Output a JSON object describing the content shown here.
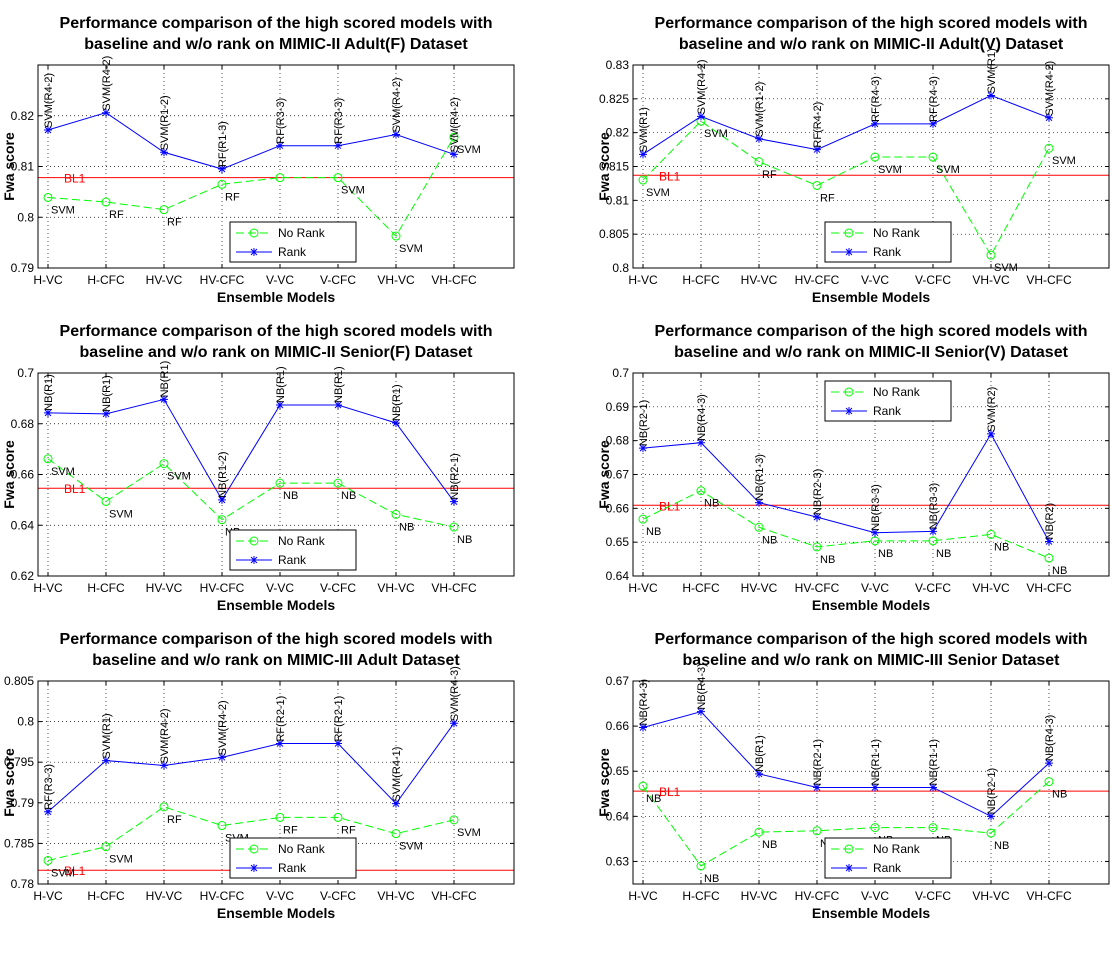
{
  "chart_data": [
    {
      "type": "line",
      "title": [
        "Performance comparison of the high scored models with",
        "baseline and w/o rank on MIMIC-II Adult(F) Dataset"
      ],
      "xlabel": "Ensemble Models",
      "ylabel": "Fwa score",
      "categories": [
        "H-VC",
        "H-CFC",
        "HV-VC",
        "HV-CFC",
        "V-VC",
        "V-CFC",
        "VH-VC",
        "VH-CFC"
      ],
      "ylim": [
        0.79,
        0.83
      ],
      "yticks": [
        0.79,
        0.8,
        0.81,
        0.82
      ],
      "ytick_labels": [
        "0.79",
        "0.8",
        "0.81",
        "0.82"
      ],
      "grid": true,
      "legend": "bottom-center",
      "baseline": {
        "label": "BL1",
        "value": 0.8078,
        "color": "#ff0000"
      },
      "series": [
        {
          "name": "No Rank",
          "color": "#00ff00",
          "marker": "circle",
          "dash": true,
          "values": [
            0.8039,
            0.803,
            0.8015,
            0.8065,
            0.8078,
            0.8078,
            0.7963,
            0.8158
          ],
          "labels": [
            "SVM",
            "RF",
            "RF",
            "RF",
            "",
            "SVM",
            "SVM",
            "SVM"
          ]
        },
        {
          "name": "Rank",
          "color": "#0000ff",
          "marker": "star",
          "dash": false,
          "values": [
            0.8172,
            0.8206,
            0.8128,
            0.8095,
            0.8141,
            0.8141,
            0.8163,
            0.8124
          ],
          "labels": [
            "SVM(R4-2)",
            "SVM(R4-2)",
            "SVM(R1-2)",
            "RF(R1-3)",
            "RF(R3-3)",
            "RF(R3-3)",
            "SVM(R4-2)",
            "SVM(R4-2)"
          ]
        }
      ]
    },
    {
      "type": "line",
      "title": [
        "Performance comparison of the high scored models with",
        "baseline and w/o rank on MIMIC-II Adult(V) Dataset"
      ],
      "xlabel": "Ensemble Models",
      "ylabel": "Fwa score",
      "categories": [
        "H-VC",
        "H-CFC",
        "HV-VC",
        "HV-CFC",
        "V-VC",
        "V-CFC",
        "VH-VC",
        "VH-CFC"
      ],
      "ylim": [
        0.8,
        0.83
      ],
      "yticks": [
        0.8,
        0.805,
        0.81,
        0.815,
        0.82,
        0.825,
        0.83
      ],
      "ytick_labels": [
        "0.8",
        "0.805",
        "0.81",
        "0.815",
        "0.82",
        "0.825",
        "0.83"
      ],
      "grid": true,
      "legend": "bottom-center",
      "baseline": {
        "label": "BL1",
        "value": 0.8137,
        "color": "#ff0000"
      },
      "series": [
        {
          "name": "No Rank",
          "color": "#00ff00",
          "marker": "circle",
          "dash": true,
          "values": [
            0.813,
            0.8217,
            0.8157,
            0.8122,
            0.8164,
            0.8164,
            0.8019,
            0.8177
          ],
          "labels": [
            "SVM",
            "SVM",
            "RF",
            "RF",
            "SVM",
            "SVM",
            "SVM",
            "SVM"
          ]
        },
        {
          "name": "Rank",
          "color": "#0000ff",
          "marker": "star",
          "dash": false,
          "values": [
            0.8168,
            0.8224,
            0.8191,
            0.8175,
            0.8213,
            0.8213,
            0.8255,
            0.8222
          ],
          "labels": [
            "SVM(R1)",
            "SVM(R4-2)",
            "SVM(R1-2)",
            "RF(R4-2)",
            "RF(R4-3)",
            "RF(R4-3)",
            "SVM(R1)",
            "SVM(R4-2)"
          ]
        }
      ]
    },
    {
      "type": "line",
      "title": [
        "Performance comparison of the high scored models with",
        "baseline and w/o rank on MIMIC-II Senior(F) Dataset"
      ],
      "xlabel": "Ensemble Models",
      "ylabel": "Fwa score",
      "categories": [
        "H-VC",
        "H-CFC",
        "HV-VC",
        "HV-CFC",
        "V-VC",
        "V-CFC",
        "VH-VC",
        "VH-CFC"
      ],
      "ylim": [
        0.62,
        0.7
      ],
      "yticks": [
        0.62,
        0.64,
        0.66,
        0.68,
        0.7
      ],
      "ytick_labels": [
        "0.62",
        "0.64",
        "0.66",
        "0.68",
        "0.7"
      ],
      "grid": true,
      "legend": "bottom-center",
      "baseline": {
        "label": "BL1",
        "value": 0.6546,
        "color": "#ff0000"
      },
      "series": [
        {
          "name": "No Rank",
          "color": "#00ff00",
          "marker": "circle",
          "dash": true,
          "values": [
            0.6662,
            0.6494,
            0.6643,
            0.6422,
            0.6566,
            0.6566,
            0.6443,
            0.6393
          ],
          "labels": [
            "SVM",
            "SVM",
            "SVM",
            "NB",
            "NB",
            "NB",
            "NB",
            "NB"
          ]
        },
        {
          "name": "Rank",
          "color": "#0000ff",
          "marker": "star",
          "dash": false,
          "values": [
            0.6843,
            0.6839,
            0.6896,
            0.65,
            0.6874,
            0.6874,
            0.6803,
            0.6493
          ],
          "labels": [
            "NB(R1)",
            "NB(R1)",
            "NB(R1)",
            "NB(R1-2)",
            "NB(R1)",
            "NB(R1)",
            "NB(R1)",
            "NB(R2-1)"
          ]
        }
      ]
    },
    {
      "type": "line",
      "title": [
        "Performance comparison of the high scored models with",
        "baseline and w/o rank on MIMIC-II Senior(V) Dataset"
      ],
      "xlabel": "Ensemble Models",
      "ylabel": "Fwa score",
      "categories": [
        "H-VC",
        "H-CFC",
        "HV-VC",
        "HV-CFC",
        "V-VC",
        "V-CFC",
        "VH-VC",
        "VH-CFC"
      ],
      "ylim": [
        0.64,
        0.7
      ],
      "yticks": [
        0.64,
        0.65,
        0.66,
        0.67,
        0.68,
        0.69,
        0.7
      ],
      "ytick_labels": [
        "0.64",
        "0.65",
        "0.66",
        "0.67",
        "0.68",
        "0.69",
        "0.7"
      ],
      "grid": true,
      "legend": "top-center",
      "baseline": {
        "label": "BL1",
        "value": 0.6609,
        "color": "#ff0000"
      },
      "series": [
        {
          "name": "No Rank",
          "color": "#00ff00",
          "marker": "circle",
          "dash": true,
          "values": [
            0.6568,
            0.6652,
            0.6544,
            0.6486,
            0.6504,
            0.6504,
            0.6523,
            0.6453
          ],
          "labels": [
            "NB",
            "NB",
            "NB",
            "NB",
            "NB",
            "NB",
            "NB",
            "NB"
          ]
        },
        {
          "name": "Rank",
          "color": "#0000ff",
          "marker": "star",
          "dash": false,
          "values": [
            0.6778,
            0.6794,
            0.6617,
            0.6574,
            0.6528,
            0.6532,
            0.682,
            0.6502
          ],
          "labels": [
            "NB(R2-1)",
            "NB(R4-3)",
            "NB(R1-3)",
            "NB(R2-3)",
            "NB(R3-3)",
            "NB(R3-3)",
            "SVM(R2)",
            "NB(R2)"
          ]
        }
      ]
    },
    {
      "type": "line",
      "title": [
        "Performance comparison of the high scored models with",
        "baseline and w/o rank on MIMIC-III Adult Dataset"
      ],
      "xlabel": "Ensemble Models",
      "ylabel": "Fwa score",
      "categories": [
        "H-VC",
        "H-CFC",
        "HV-VC",
        "HV-CFC",
        "V-VC",
        "V-CFC",
        "VH-VC",
        "VH-CFC"
      ],
      "ylim": [
        0.78,
        0.805
      ],
      "yticks": [
        0.78,
        0.785,
        0.79,
        0.795,
        0.8,
        0.805
      ],
      "ytick_labels": [
        "0.78",
        "0.785",
        "0.79",
        "0.795",
        "0.8",
        "0.805"
      ],
      "grid": true,
      "legend": "bottom-center",
      "baseline": {
        "label": "BL1",
        "value": 0.7817,
        "color": "#ff0000"
      },
      "series": [
        {
          "name": "No Rank",
          "color": "#00ff00",
          "marker": "circle",
          "dash": true,
          "values": [
            0.7829,
            0.7846,
            0.7895,
            0.7872,
            0.7882,
            0.7882,
            0.7862,
            0.7879
          ],
          "labels": [
            "SVM",
            "SVM",
            "RF",
            "SVM",
            "RF",
            "RF",
            "SVM",
            "SVM"
          ]
        },
        {
          "name": "Rank",
          "color": "#0000ff",
          "marker": "star",
          "dash": false,
          "values": [
            0.7889,
            0.7952,
            0.7946,
            0.7956,
            0.7973,
            0.7973,
            0.7899,
            0.7998
          ],
          "labels": [
            "RF(R3-3)",
            "SVM(R1)",
            "SVM(R4-2)",
            "SVM(R4-2)",
            "RF(R2-1)",
            "RF(R2-1)",
            "SVM(R4-1)",
            "SVM(R4-3)"
          ]
        }
      ]
    },
    {
      "type": "line",
      "title": [
        "Performance comparison of the high scored models with",
        "baseline and w/o rank on MIMIC-III Senior Dataset"
      ],
      "xlabel": "Ensemble Models",
      "ylabel": "Fwa score",
      "categories": [
        "H-VC",
        "H-CFC",
        "HV-VC",
        "HV-CFC",
        "V-VC",
        "V-CFC",
        "VH-VC",
        "VH-CFC"
      ],
      "ylim": [
        0.625,
        0.67
      ],
      "yticks": [
        0.63,
        0.64,
        0.65,
        0.66,
        0.67
      ],
      "ytick_labels": [
        "0.63",
        "0.64",
        "0.65",
        "0.66",
        "0.67"
      ],
      "grid": true,
      "legend": "bottom-center",
      "baseline": {
        "label": "BL1",
        "value": 0.6456,
        "color": "#ff0000"
      },
      "series": [
        {
          "name": "No Rank",
          "color": "#00ff00",
          "marker": "circle",
          "dash": true,
          "values": [
            0.6467,
            0.629,
            0.6365,
            0.6368,
            0.6375,
            0.6375,
            0.6363,
            0.6477
          ],
          "labels": [
            "NB",
            "NB",
            "NB",
            "NB",
            "NB",
            "NB",
            "NB",
            "NB"
          ]
        },
        {
          "name": "Rank",
          "color": "#0000ff",
          "marker": "star",
          "dash": false,
          "values": [
            0.6597,
            0.6632,
            0.6494,
            0.6464,
            0.6464,
            0.6464,
            0.64,
            0.6518
          ],
          "labels": [
            "NB(R4-3)",
            "NB(R4-3)",
            "NB(R1)",
            "NB(R2-1)",
            "NB(R1-1)",
            "NB(R1-1)",
            "NB(R2-1)",
            "NB(R4-3)"
          ]
        }
      ]
    }
  ]
}
